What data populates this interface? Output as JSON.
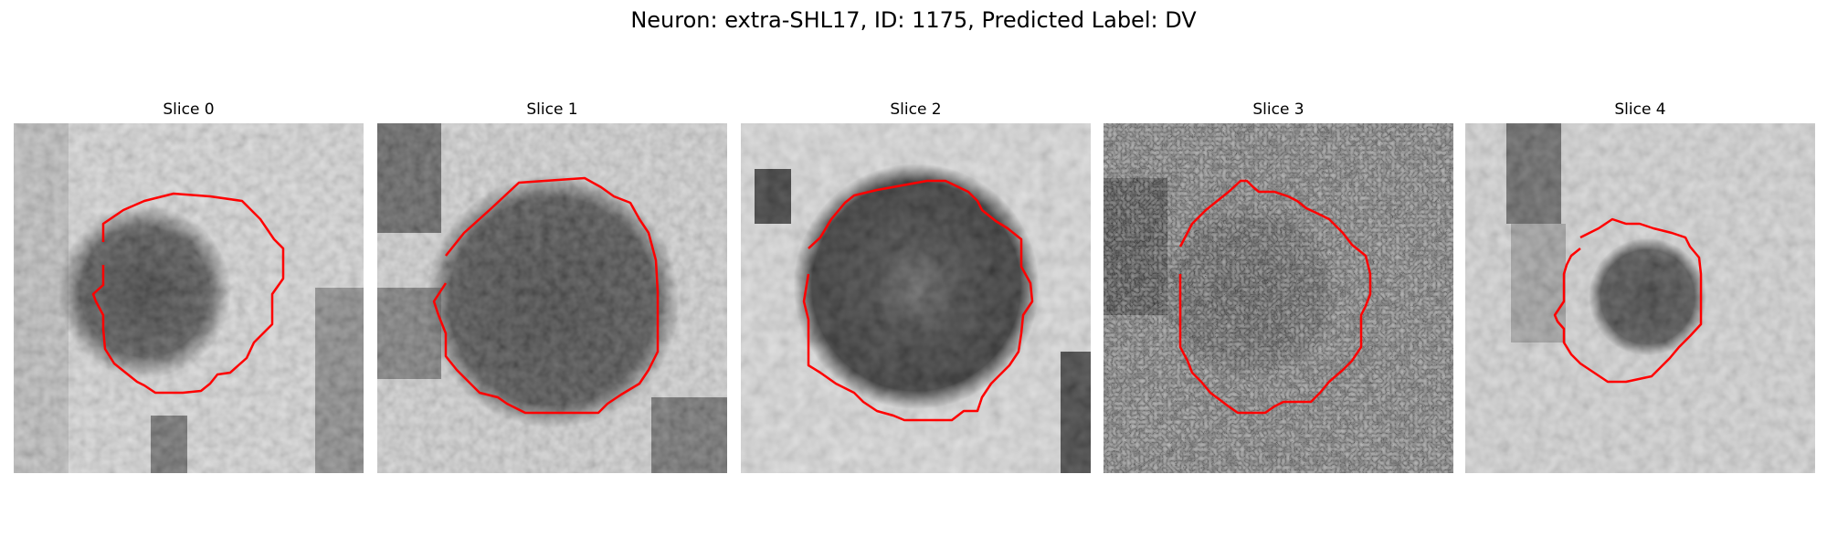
{
  "figure": {
    "title": "Neuron: extra-SHL17, ID: 1175, Predicted Label: DV",
    "contour_color": "#ff0000"
  },
  "panels": [
    {
      "title": "Slice 0"
    },
    {
      "title": "Slice 1"
    },
    {
      "title": "Slice 2"
    },
    {
      "title": "Slice 3"
    },
    {
      "title": "Slice 4"
    }
  ]
}
